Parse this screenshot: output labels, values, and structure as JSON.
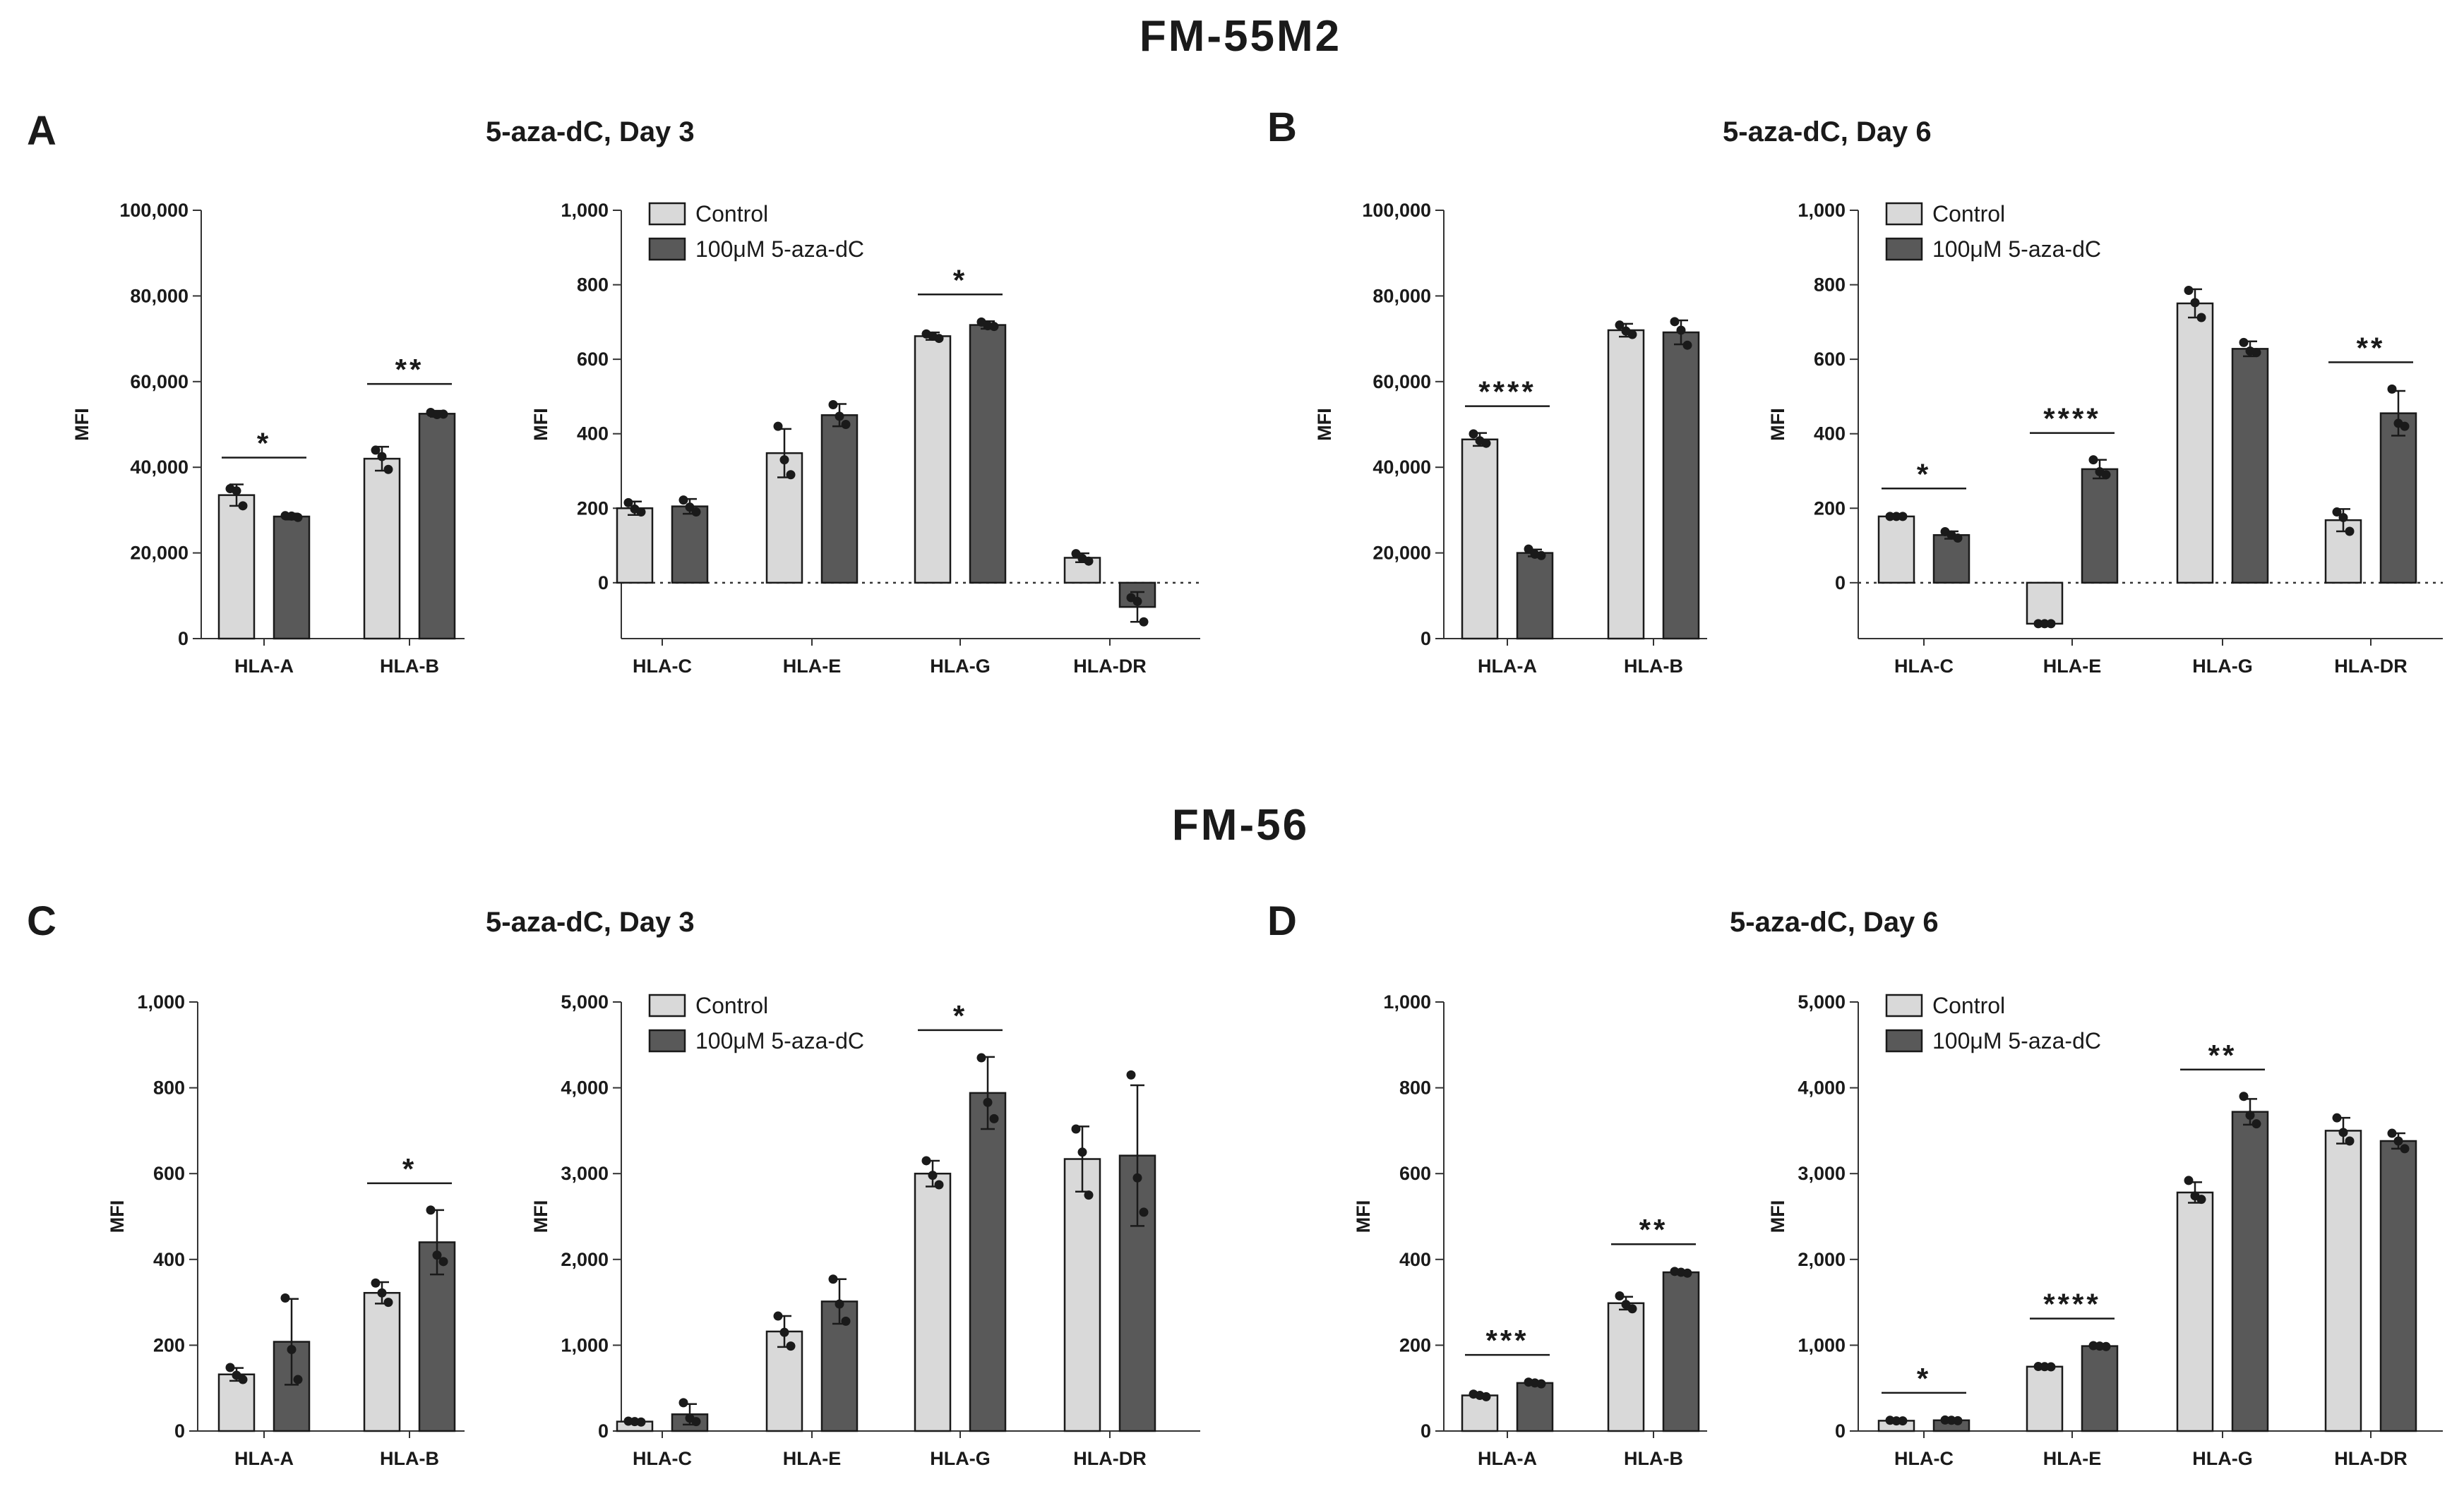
{
  "titles": {
    "top_cell_line": "FM-55M2",
    "bottom_cell_line": "FM-56"
  },
  "panels": [
    {
      "letter": "A",
      "subtitle": "5-aza-dC, Day 3"
    },
    {
      "letter": "B",
      "subtitle": "5-aza-dC, Day 6"
    },
    {
      "letter": "C",
      "subtitle": "5-aza-dC, Day 3"
    },
    {
      "letter": "D",
      "subtitle": "5-aza-dC, Day 6"
    }
  ],
  "colors": {
    "control": "#d9d9d9",
    "treated": "#595959",
    "stroke": "#1a1a1a"
  },
  "chart_data": [
    {
      "id": "A1",
      "type": "bar",
      "ylabel": "MFI",
      "ylim": [
        0,
        100000
      ],
      "yticks": [
        "0",
        "20,000",
        "40,000",
        "60,000",
        "80,000",
        "100,000"
      ],
      "categories": [
        "HLA-A",
        "HLA-B"
      ],
      "series": [
        {
          "name": "Control",
          "values": [
            33500,
            42000
          ],
          "err": [
            2500,
            2800
          ],
          "points": [
            [
              35000,
              31000,
              34500
            ],
            [
              44000,
              39500,
              42500
            ]
          ]
        },
        {
          "name": "100μM 5-aza-dC",
          "values": [
            28500,
            52500
          ],
          "err": [
            700,
            700
          ],
          "points": [
            [
              28700,
              28300,
              28600
            ],
            [
              52800,
              52400,
              52300
            ]
          ]
        }
      ],
      "sig": [
        {
          "cat": 0,
          "label": "*"
        },
        {
          "cat": 1,
          "label": "**"
        }
      ]
    },
    {
      "id": "A2",
      "type": "bar",
      "ylabel": "MFI",
      "ylim": [
        -150,
        1000
      ],
      "yticks": [
        "0",
        "200",
        "400",
        "600",
        "800",
        "1,000"
      ],
      "categories": [
        "HLA-C",
        "HLA-E",
        "HLA-G",
        "HLA-DR"
      ],
      "legend": {
        "position": "top-left",
        "entries": [
          "Control",
          "100μM 5-aza-dC"
        ]
      },
      "series": [
        {
          "name": "Control",
          "values": [
            200,
            348,
            662,
            67
          ],
          "err": [
            18,
            65,
            10,
            12
          ],
          "points": [
            [
              215,
              190,
              198
            ],
            [
              420,
              290,
              330
            ],
            [
              668,
              656,
              662
            ],
            [
              78,
              58,
              65
            ]
          ]
        },
        {
          "name": "100μM 5-aza-dC",
          "values": [
            205,
            450,
            692,
            -65
          ],
          "err": [
            20,
            30,
            10,
            40
          ],
          "points": [
            [
              222,
              190,
              203
            ],
            [
              478,
              425,
              447
            ],
            [
              700,
              688,
              690
            ],
            [
              -40,
              -105,
              -50
            ]
          ]
        }
      ],
      "sig": [
        {
          "cat": 2,
          "label": "*"
        }
      ]
    },
    {
      "id": "B1",
      "type": "bar",
      "ylabel": "MFI",
      "ylim": [
        0,
        100000
      ],
      "yticks": [
        "0",
        "20,000",
        "40,000",
        "60,000",
        "80,000",
        "100,000"
      ],
      "categories": [
        "HLA-A",
        "HLA-B"
      ],
      "series": [
        {
          "name": "Control",
          "values": [
            46500,
            72000
          ],
          "err": [
            1500,
            1500
          ],
          "points": [
            [
              47800,
              45600,
              46200
            ],
            [
              73200,
              71000,
              71800
            ]
          ]
        },
        {
          "name": "100μM 5-aza-dC",
          "values": [
            20000,
            71500
          ],
          "err": [
            800,
            2800
          ],
          "points": [
            [
              20900,
              19400,
              19700
            ],
            [
              74000,
              68500,
              72000
            ]
          ]
        }
      ],
      "sig": [
        {
          "cat": 0,
          "label": "****"
        }
      ]
    },
    {
      "id": "B2",
      "type": "bar",
      "ylabel": "MFI",
      "ylim": [
        -150,
        1000
      ],
      "yticks": [
        "0",
        "200",
        "400",
        "600",
        "800",
        "1,000"
      ],
      "categories": [
        "HLA-C",
        "HLA-E",
        "HLA-G",
        "HLA-DR"
      ],
      "legend": {
        "position": "top-left",
        "entries": [
          "Control",
          "100μM 5-aza-dC"
        ]
      },
      "series": [
        {
          "name": "Control",
          "values": [
            178,
            -110,
            750,
            168
          ],
          "err": [
            3,
            3,
            38,
            30
          ],
          "points": [
            [
              178,
              178,
              178
            ],
            [
              -110,
              -110,
              -110
            ],
            [
              785,
              712,
              752
            ],
            [
              190,
              138,
              175
            ]
          ]
        },
        {
          "name": "100μM 5-aza-dC",
          "values": [
            128,
            305,
            628,
            455
          ],
          "err": [
            10,
            25,
            20,
            60
          ],
          "points": [
            [
              137,
              120,
              128
            ],
            [
              330,
              290,
              298
            ],
            [
              645,
              618,
              622
            ],
            [
              520,
              420,
              428
            ]
          ]
        }
      ],
      "sig": [
        {
          "cat": 0,
          "label": "*"
        },
        {
          "cat": 1,
          "label": "****"
        },
        {
          "cat": 3,
          "label": "**"
        }
      ]
    },
    {
      "id": "C1",
      "type": "bar",
      "ylabel": "MFI",
      "ylim": [
        0,
        1000
      ],
      "yticks": [
        "0",
        "200",
        "400",
        "600",
        "800",
        "1,000"
      ],
      "categories": [
        "HLA-A",
        "HLA-B"
      ],
      "series": [
        {
          "name": "Control",
          "values": [
            132,
            322
          ],
          "err": [
            15,
            25
          ],
          "points": [
            [
              148,
              120,
              130
            ],
            [
              345,
              300,
              322
            ]
          ]
        },
        {
          "name": "100μM 5-aza-dC",
          "values": [
            208,
            440
          ],
          "err": [
            100,
            75
          ],
          "points": [
            [
              310,
              120,
              190
            ],
            [
              515,
              395,
              410
            ]
          ]
        }
      ],
      "sig": [
        {
          "cat": 1,
          "label": "*"
        }
      ]
    },
    {
      "id": "C2",
      "type": "bar",
      "ylabel": "MFI",
      "ylim": [
        0,
        5000
      ],
      "yticks": [
        "0",
        "1,000",
        "2,000",
        "3,000",
        "4,000",
        "5,000"
      ],
      "categories": [
        "HLA-C",
        "HLA-E",
        "HLA-G",
        "HLA-DR"
      ],
      "legend": {
        "position": "top-left",
        "entries": [
          "Control",
          "100μM 5-aza-dC"
        ]
      },
      "series": [
        {
          "name": "Control",
          "values": [
            110,
            1160,
            3000,
            3170
          ],
          "err": [
            10,
            180,
            150,
            380
          ],
          "points": [
            [
              115,
              105,
              110
            ],
            [
              1340,
              990,
              1150
            ],
            [
              3150,
              2870,
              2980
            ],
            [
              3520,
              2750,
              3250
            ]
          ]
        },
        {
          "name": "100μM 5-aza-dC",
          "values": [
            195,
            1510,
            3940,
            3210
          ],
          "err": [
            120,
            260,
            420,
            820
          ],
          "points": [
            [
              330,
              110,
              150
            ],
            [
              1770,
              1280,
              1480
            ],
            [
              4350,
              3640,
              3830
            ],
            [
              4150,
              2550,
              2950
            ]
          ]
        }
      ],
      "sig": [
        {
          "cat": 2,
          "label": "*"
        }
      ]
    },
    {
      "id": "D1",
      "type": "bar",
      "ylabel": "MFI",
      "ylim": [
        0,
        1000
      ],
      "yticks": [
        "0",
        "200",
        "400",
        "600",
        "800",
        "1,000"
      ],
      "categories": [
        "HLA-A",
        "HLA-B"
      ],
      "series": [
        {
          "name": "Control",
          "values": [
            83,
            298
          ],
          "err": [
            4,
            15
          ],
          "points": [
            [
              86,
              80,
              83
            ],
            [
              315,
              285,
              295
            ]
          ]
        },
        {
          "name": "100μM 5-aza-dC",
          "values": [
            112,
            370
          ],
          "err": [
            3,
            3
          ],
          "points": [
            [
              114,
              110,
              112
            ],
            [
              372,
              368,
              370
            ]
          ]
        }
      ],
      "sig": [
        {
          "cat": 0,
          "label": "***"
        },
        {
          "cat": 1,
          "label": "**"
        }
      ]
    },
    {
      "id": "D2",
      "type": "bar",
      "ylabel": "MFI",
      "ylim": [
        0,
        5000
      ],
      "yticks": [
        "0",
        "1,000",
        "2,000",
        "3,000",
        "4,000",
        "5,000"
      ],
      "categories": [
        "HLA-C",
        "HLA-E",
        "HLA-G",
        "HLA-DR"
      ],
      "legend": {
        "position": "top-left",
        "entries": [
          "Control",
          "100μM 5-aza-dC"
        ]
      },
      "series": [
        {
          "name": "Control",
          "values": [
            120,
            750,
            2780,
            3500
          ],
          "err": [
            8,
            10,
            120,
            150
          ],
          "points": [
            [
              125,
              118,
              118
            ],
            [
              752,
              748,
              750
            ],
            [
              2920,
              2700,
              2740
            ],
            [
              3650,
              3380,
              3480
            ]
          ]
        },
        {
          "name": "100μM 5-aza-dC",
          "values": [
            125,
            990,
            3720,
            3380
          ],
          "err": [
            8,
            8,
            150,
            90
          ],
          "points": [
            [
              128,
              120,
              125
            ],
            [
              995,
              985,
              990
            ],
            [
              3900,
              3580,
              3680
            ],
            [
              3470,
              3290,
              3380
            ]
          ]
        }
      ],
      "sig": [
        {
          "cat": 0,
          "label": "*"
        },
        {
          "cat": 1,
          "label": "****"
        },
        {
          "cat": 2,
          "label": "**"
        }
      ]
    }
  ]
}
